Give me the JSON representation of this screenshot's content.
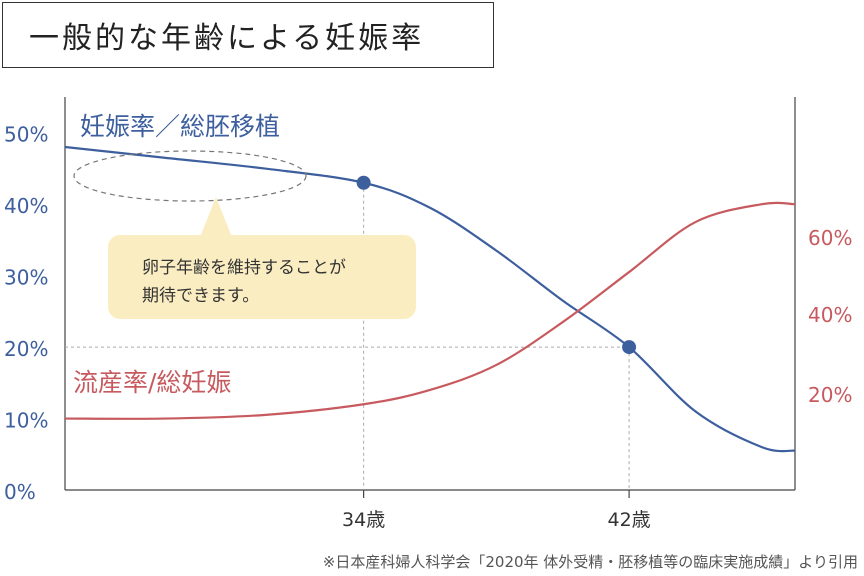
{
  "title": "一般的な年齢による妊娠率",
  "source": "※日本産科婦人科学会「2020年 体外受精・胚移植等の臨床実施成績」より引用",
  "colors": {
    "blue": "#3d5f9e",
    "red": "#c75a5f",
    "callout_bg": "#fbedc2",
    "axis": "#444444",
    "guide": "#aaaaaa"
  },
  "annotation": {
    "lines": [
      "卵子年齢を維持することが",
      "期待できます。"
    ]
  },
  "chart_data": {
    "type": "line",
    "x_ticks": [
      {
        "x": 34,
        "label": "34歳"
      },
      {
        "x": 42,
        "label": "42歳"
      }
    ],
    "xlim": [
      25,
      47
    ],
    "y_left": {
      "ticks": [
        "0%",
        "10%",
        "20%",
        "30%",
        "40%",
        "50%"
      ],
      "ylim": [
        0,
        55
      ]
    },
    "y_right": {
      "ticks": [
        "20%",
        "40%",
        "60%"
      ]
    },
    "series": [
      {
        "name": "妊娠率／総胚移植",
        "axis": "left",
        "color": "#3d5f9e",
        "x": [
          25,
          28,
          31,
          34,
          36,
          38,
          40,
          42,
          44,
          46,
          47
        ],
        "y": [
          48,
          46.5,
          45,
          43,
          39.5,
          33.5,
          26.5,
          20,
          11,
          6,
          5.5
        ],
        "markers": [
          {
            "x": 34,
            "y": 43
          },
          {
            "x": 42,
            "y": 20
          }
        ]
      },
      {
        "name": "流産率/総妊娠",
        "axis": "left",
        "color": "#c75a5f",
        "x": [
          25,
          28,
          31,
          34,
          36,
          38,
          40,
          42,
          44,
          46,
          47
        ],
        "y": [
          10,
          10,
          10.5,
          12,
          14,
          17.5,
          23.5,
          30.5,
          37.5,
          40,
          40
        ]
      }
    ],
    "grid": false
  }
}
